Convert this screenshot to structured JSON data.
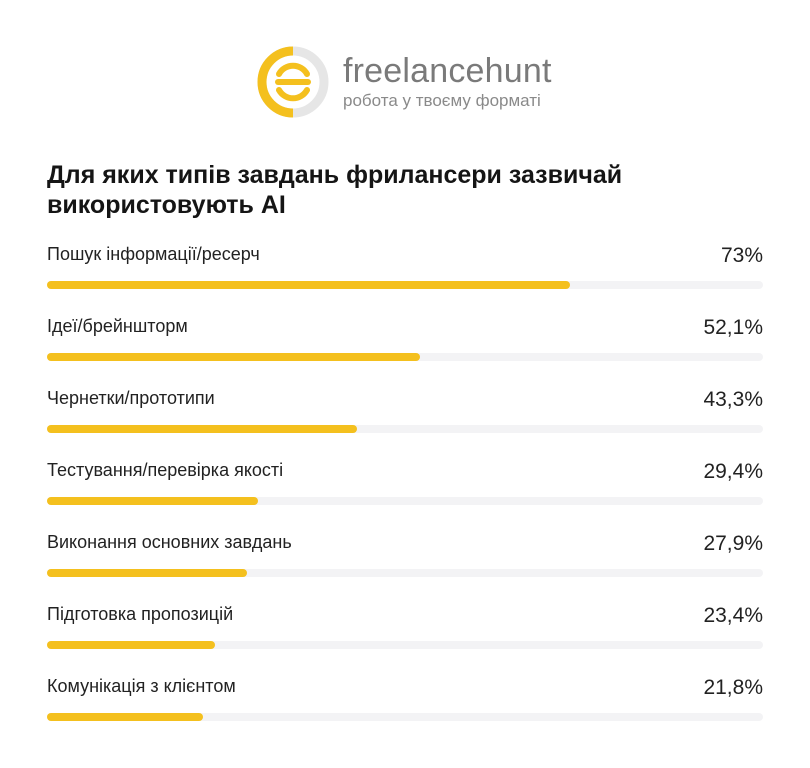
{
  "brand": {
    "name": "freelancehunt",
    "tagline": "робота у твоєму форматі",
    "accent_color": "#f4c01e",
    "track_color": "#f3f3f5"
  },
  "chart_data": {
    "type": "bar",
    "orientation": "horizontal",
    "title": "Для яких типів завдань фрилансери зазвичай використовують AI",
    "xlim": [
      0,
      100
    ],
    "categories": [
      "Пошук інформації/ресерч",
      "Ідеї/брейншторм",
      "Чернетки/прототипи",
      "Тестування/перевірка якості",
      "Виконання основних завдань",
      "Підготовка пропозицій",
      "Комунікація з клієнтом"
    ],
    "values": [
      73,
      52.1,
      43.3,
      29.4,
      27.9,
      23.4,
      21.8
    ],
    "value_labels": [
      "73%",
      "52,1%",
      "43,3%",
      "29,4%",
      "27,9%",
      "23,4%",
      "21,8%"
    ]
  }
}
